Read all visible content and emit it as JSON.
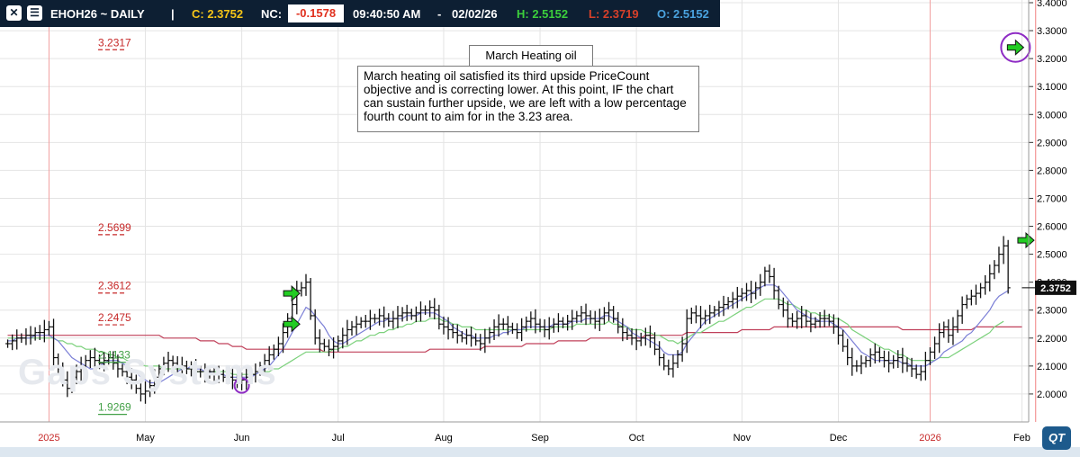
{
  "header": {
    "symbol": "EHOH26 ~ DAILY",
    "sep": "|",
    "close": "C: 2.3752",
    "nc_label": "NC:",
    "nc_value": "-0.1578",
    "time": "09:40:50 AM",
    "dash": "-",
    "date": "02/02/26",
    "high": "H: 2.5152",
    "low": "L: 2.3719",
    "open": "O: 2.5152",
    "close_icon": "close-icon",
    "menu_icon": "menu-icon"
  },
  "annotation": {
    "title": "March Heating oil",
    "text": "March heating oil satisfied its third upside PriceCount objective and is correcting lower.  At this point, IF the chart can sustain further upside, we are left with a low percentage fourth count to aim for in the 3.23 area."
  },
  "watermark": "Gaps Systems",
  "logo": "QT",
  "colors": {
    "background": "#ffffff",
    "header_bg": "#0d1f33",
    "close_yellow": "#f5c518",
    "nc_red": "#e0301e",
    "high_green": "#3ccf3c",
    "low_red": "#d6402a",
    "open_blue": "#4aa3df",
    "bar": "#111111",
    "target_red": "#c62828",
    "target_green": "#43a047",
    "ma_red": "#c0405a",
    "ma_green": "#7cd17c",
    "ma_blue": "#7b7fd6",
    "ma_cyan": "#9fd9e6",
    "arrow_green": "#22cc22",
    "circle_purple": "#8e2cc4"
  },
  "chart_data": {
    "type": "ohlc",
    "ylim": [
      1.9,
      3.4
    ],
    "y_ticks": [
      2.0,
      2.1,
      2.2,
      2.3,
      2.4,
      2.5,
      2.6,
      2.7,
      2.8,
      2.9,
      3.0,
      3.1,
      3.2,
      3.3,
      3.4
    ],
    "y_tick_labels": [
      "2.0000",
      "2.1000",
      "2.2000",
      "2.3000",
      "2.4000",
      "2.5000",
      "2.6000",
      "2.7000",
      "2.8000",
      "2.9000",
      "3.0000",
      "3.1000",
      "3.2000",
      "3.3000",
      "3.4000"
    ],
    "x_labels": [
      {
        "label": "2025",
        "i": 9,
        "year": true
      },
      {
        "label": "May",
        "i": 30
      },
      {
        "label": "Jun",
        "i": 51
      },
      {
        "label": "Jul",
        "i": 72
      },
      {
        "label": "Aug",
        "i": 95
      },
      {
        "label": "Sep",
        "i": 116
      },
      {
        "label": "Oct",
        "i": 137
      },
      {
        "label": "Nov",
        "i": 160
      },
      {
        "label": "Dec",
        "i": 181
      },
      {
        "label": "2026",
        "i": 201,
        "year": true
      },
      {
        "label": "Feb",
        "i": 221
      }
    ],
    "n_bars": 222,
    "last_price": "2.3752",
    "closes": [
      2.18,
      2.19,
      2.2,
      2.2,
      2.21,
      2.21,
      2.22,
      2.22,
      2.23,
      2.24,
      2.13,
      2.09,
      2.05,
      2.02,
      2.06,
      2.08,
      2.1,
      2.12,
      2.13,
      2.12,
      2.11,
      2.12,
      2.13,
      2.11,
      2.09,
      2.08,
      2.06,
      2.05,
      2.02,
      2.0,
      2.01,
      2.03,
      2.06,
      2.09,
      2.11,
      2.12,
      2.11,
      2.1,
      2.1,
      2.09,
      2.09,
      2.08,
      2.08,
      2.07,
      2.08,
      2.07,
      2.07,
      2.06,
      2.06,
      2.05,
      2.04,
      2.05,
      2.06,
      2.07,
      2.08,
      2.1,
      2.12,
      2.14,
      2.16,
      2.18,
      2.22,
      2.27,
      2.32,
      2.37,
      2.38,
      2.4,
      2.28,
      2.2,
      2.18,
      2.17,
      2.16,
      2.17,
      2.19,
      2.21,
      2.23,
      2.24,
      2.25,
      2.26,
      2.26,
      2.27,
      2.27,
      2.28,
      2.27,
      2.26,
      2.27,
      2.28,
      2.29,
      2.29,
      2.28,
      2.29,
      2.3,
      2.3,
      2.31,
      2.3,
      2.25,
      2.24,
      2.23,
      2.22,
      2.21,
      2.2,
      2.21,
      2.2,
      2.19,
      2.18,
      2.2,
      2.22,
      2.24,
      2.25,
      2.25,
      2.24,
      2.23,
      2.22,
      2.24,
      2.26,
      2.27,
      2.25,
      2.24,
      2.23,
      2.24,
      2.25,
      2.26,
      2.25,
      2.26,
      2.27,
      2.28,
      2.29,
      2.28,
      2.27,
      2.26,
      2.27,
      2.29,
      2.3,
      2.27,
      2.24,
      2.22,
      2.21,
      2.2,
      2.19,
      2.2,
      2.21,
      2.2,
      2.16,
      2.13,
      2.1,
      2.09,
      2.11,
      2.14,
      2.18,
      2.27,
      2.29,
      2.28,
      2.27,
      2.28,
      2.29,
      2.3,
      2.31,
      2.32,
      2.33,
      2.34,
      2.35,
      2.36,
      2.37,
      2.36,
      2.38,
      2.4,
      2.44,
      2.42,
      2.37,
      2.32,
      2.3,
      2.27,
      2.26,
      2.27,
      2.28,
      2.26,
      2.25,
      2.26,
      2.27,
      2.27,
      2.26,
      2.24,
      2.21,
      2.17,
      2.13,
      2.1,
      2.1,
      2.11,
      2.12,
      2.14,
      2.15,
      2.13,
      2.12,
      2.11,
      2.12,
      2.13,
      2.11,
      2.1,
      2.09,
      2.07,
      2.08,
      2.12,
      2.15,
      2.18,
      2.22,
      2.24,
      2.21,
      2.24,
      2.28,
      2.32,
      2.34,
      2.35,
      2.36,
      2.38,
      2.4,
      2.43,
      2.46,
      2.5,
      2.53,
      2.38
    ],
    "moving_averages": [
      {
        "color_key": "ma_red",
        "values": [
          2.21,
          2.21,
          2.21,
          2.21,
          2.21,
          2.21,
          2.21,
          2.21,
          2.21,
          2.21,
          2.21,
          2.21,
          2.21,
          2.21,
          2.21,
          2.21,
          2.21,
          2.21,
          2.21,
          2.21,
          2.21,
          2.21,
          2.21,
          2.21,
          2.21,
          2.21,
          2.21,
          2.21,
          2.21,
          2.21,
          2.21,
          2.21,
          2.21,
          2.21,
          2.2,
          2.2,
          2.2,
          2.2,
          2.2,
          2.2,
          2.2,
          2.2,
          2.19,
          2.19,
          2.19,
          2.19,
          2.18,
          2.18,
          2.18,
          2.17,
          2.17,
          2.17,
          2.16,
          2.16,
          2.16,
          2.16,
          2.16,
          2.16,
          2.16,
          2.16,
          2.16,
          2.16,
          2.16,
          2.16,
          2.16,
          2.16,
          2.16,
          2.16,
          2.16,
          2.15,
          2.15,
          2.15,
          2.15,
          2.15,
          2.15,
          2.15,
          2.15,
          2.15,
          2.15,
          2.15,
          2.15,
          2.15,
          2.15,
          2.15,
          2.15,
          2.15,
          2.15,
          2.15,
          2.15,
          2.15,
          2.15,
          2.15,
          2.16,
          2.16,
          2.16,
          2.16,
          2.16,
          2.16,
          2.16,
          2.16,
          2.16,
          2.16,
          2.16,
          2.16,
          2.17,
          2.17,
          2.17,
          2.17,
          2.17,
          2.17,
          2.17,
          2.17,
          2.17,
          2.18,
          2.18,
          2.18,
          2.18,
          2.18,
          2.18,
          2.18,
          2.19,
          2.19,
          2.19,
          2.19,
          2.19,
          2.19,
          2.19,
          2.2,
          2.2,
          2.2,
          2.2,
          2.2,
          2.2,
          2.2,
          2.2,
          2.2,
          2.2,
          2.2,
          2.2,
          2.21,
          2.21,
          2.21,
          2.21,
          2.21,
          2.21,
          2.21,
          2.21,
          2.21,
          2.22,
          2.22,
          2.22,
          2.22,
          2.22,
          2.22,
          2.22,
          2.22,
          2.22,
          2.22,
          2.22,
          2.22,
          2.23,
          2.23,
          2.23,
          2.23,
          2.23,
          2.23,
          2.23,
          2.24,
          2.24,
          2.24,
          2.24,
          2.24,
          2.24,
          2.24,
          2.24,
          2.24,
          2.24,
          2.24,
          2.24,
          2.24,
          2.24,
          2.24,
          2.24,
          2.24,
          2.24,
          2.24,
          2.24,
          2.24,
          2.24,
          2.24,
          2.24,
          2.24,
          2.24,
          2.24,
          2.24,
          2.23,
          2.23,
          2.23,
          2.23,
          2.23,
          2.23,
          2.23,
          2.23,
          2.23,
          2.23,
          2.23,
          2.23,
          2.23,
          2.23,
          2.23,
          2.23,
          2.24,
          2.24,
          2.24,
          2.24,
          2.24,
          2.24,
          2.24,
          2.24,
          2.24,
          2.24,
          2.24
        ]
      },
      {
        "color_key": "ma_green",
        "values": [
          2.2,
          2.2,
          2.2,
          2.2,
          2.2,
          2.2,
          2.2,
          2.2,
          2.2,
          2.2,
          2.2,
          2.19,
          2.19,
          2.18,
          2.18,
          2.17,
          2.17,
          2.16,
          2.16,
          2.16,
          2.15,
          2.15,
          2.14,
          2.14,
          2.13,
          2.13,
          2.12,
          2.12,
          2.12,
          2.11,
          2.1,
          2.1,
          2.1,
          2.1,
          2.09,
          2.09,
          2.09,
          2.09,
          2.09,
          2.09,
          2.09,
          2.08,
          2.08,
          2.08,
          2.08,
          2.08,
          2.08,
          2.08,
          2.08,
          2.07,
          2.07,
          2.07,
          2.07,
          2.07,
          2.07,
          2.08,
          2.08,
          2.08,
          2.09,
          2.09,
          2.1,
          2.11,
          2.12,
          2.13,
          2.14,
          2.15,
          2.15,
          2.15,
          2.15,
          2.15,
          2.15,
          2.16,
          2.16,
          2.17,
          2.17,
          2.18,
          2.19,
          2.19,
          2.2,
          2.21,
          2.21,
          2.22,
          2.22,
          2.23,
          2.23,
          2.24,
          2.24,
          2.25,
          2.25,
          2.26,
          2.26,
          2.26,
          2.27,
          2.27,
          2.27,
          2.26,
          2.26,
          2.25,
          2.25,
          2.24,
          2.24,
          2.24,
          2.23,
          2.23,
          2.23,
          2.23,
          2.23,
          2.23,
          2.23,
          2.23,
          2.23,
          2.23,
          2.23,
          2.23,
          2.23,
          2.23,
          2.23,
          2.23,
          2.23,
          2.24,
          2.24,
          2.24,
          2.24,
          2.24,
          2.25,
          2.25,
          2.25,
          2.25,
          2.25,
          2.25,
          2.25,
          2.26,
          2.25,
          2.25,
          2.24,
          2.24,
          2.23,
          2.23,
          2.23,
          2.22,
          2.22,
          2.21,
          2.21,
          2.2,
          2.19,
          2.19,
          2.18,
          2.19,
          2.2,
          2.21,
          2.22,
          2.22,
          2.23,
          2.24,
          2.25,
          2.26,
          2.26,
          2.27,
          2.28,
          2.29,
          2.3,
          2.31,
          2.31,
          2.32,
          2.33,
          2.34,
          2.34,
          2.34,
          2.34,
          2.33,
          2.32,
          2.32,
          2.31,
          2.3,
          2.3,
          2.29,
          2.29,
          2.28,
          2.28,
          2.28,
          2.27,
          2.27,
          2.26,
          2.25,
          2.23,
          2.22,
          2.21,
          2.2,
          2.19,
          2.18,
          2.17,
          2.16,
          2.16,
          2.15,
          2.14,
          2.14,
          2.13,
          2.12,
          2.12,
          2.12,
          2.12,
          2.12,
          2.12,
          2.13,
          2.13,
          2.13,
          2.14,
          2.15,
          2.16,
          2.17,
          2.18,
          2.19,
          2.2,
          2.21,
          2.22,
          2.24,
          2.25,
          2.26
        ]
      },
      {
        "color_key": "ma_blue",
        "values": [
          2.19,
          2.19,
          2.2,
          2.2,
          2.2,
          2.2,
          2.21,
          2.21,
          2.21,
          2.21,
          2.2,
          2.19,
          2.17,
          2.15,
          2.13,
          2.12,
          2.11,
          2.1,
          2.09,
          2.09,
          2.1,
          2.11,
          2.12,
          2.12,
          2.12,
          2.11,
          2.1,
          2.09,
          2.08,
          2.06,
          2.05,
          2.04,
          2.04,
          2.04,
          2.05,
          2.06,
          2.07,
          2.08,
          2.09,
          2.09,
          2.1,
          2.09,
          2.09,
          2.08,
          2.08,
          2.07,
          2.07,
          2.07,
          2.06,
          2.06,
          2.06,
          2.06,
          2.06,
          2.06,
          2.07,
          2.08,
          2.09,
          2.1,
          2.12,
          2.14,
          2.16,
          2.19,
          2.22,
          2.25,
          2.28,
          2.31,
          2.3,
          2.28,
          2.26,
          2.24,
          2.21,
          2.19,
          2.18,
          2.18,
          2.19,
          2.2,
          2.21,
          2.22,
          2.23,
          2.24,
          2.25,
          2.26,
          2.26,
          2.27,
          2.27,
          2.27,
          2.27,
          2.28,
          2.28,
          2.28,
          2.29,
          2.29,
          2.29,
          2.29,
          2.28,
          2.27,
          2.26,
          2.24,
          2.23,
          2.22,
          2.21,
          2.21,
          2.2,
          2.2,
          2.2,
          2.2,
          2.21,
          2.21,
          2.22,
          2.22,
          2.23,
          2.23,
          2.23,
          2.24,
          2.24,
          2.24,
          2.24,
          2.24,
          2.24,
          2.25,
          2.25,
          2.25,
          2.25,
          2.26,
          2.26,
          2.26,
          2.27,
          2.27,
          2.27,
          2.27,
          2.28,
          2.28,
          2.27,
          2.26,
          2.25,
          2.24,
          2.22,
          2.21,
          2.2,
          2.2,
          2.19,
          2.18,
          2.17,
          2.15,
          2.14,
          2.14,
          2.14,
          2.15,
          2.18,
          2.2,
          2.22,
          2.24,
          2.26,
          2.27,
          2.28,
          2.29,
          2.3,
          2.31,
          2.32,
          2.33,
          2.34,
          2.35,
          2.36,
          2.37,
          2.38,
          2.39,
          2.39,
          2.39,
          2.38,
          2.36,
          2.34,
          2.32,
          2.3,
          2.29,
          2.28,
          2.27,
          2.27,
          2.26,
          2.26,
          2.26,
          2.25,
          2.24,
          2.23,
          2.21,
          2.19,
          2.17,
          2.15,
          2.14,
          2.13,
          2.12,
          2.12,
          2.12,
          2.12,
          2.12,
          2.12,
          2.11,
          2.11,
          2.1,
          2.1,
          2.1,
          2.1,
          2.11,
          2.12,
          2.13,
          2.15,
          2.16,
          2.17,
          2.18,
          2.19,
          2.21,
          2.22,
          2.24,
          2.26,
          2.28,
          2.3,
          2.33,
          2.35,
          2.36,
          2.37
        ]
      }
    ],
    "targets": [
      {
        "label": "3.2317",
        "value": 3.2317,
        "i": 5,
        "color_key": "target_red"
      },
      {
        "label": "2.5699",
        "value": 2.5699,
        "i": 5,
        "color_key": "target_red"
      },
      {
        "label": "2.3612",
        "value": 2.3612,
        "i": 5,
        "color_key": "target_red"
      },
      {
        "label": "2.2475",
        "value": 2.2475,
        "i": 5,
        "color_key": "target_red"
      },
      {
        "label": "2.1133",
        "value": 2.1133,
        "i": 5,
        "color_key": "target_green"
      },
      {
        "label": "1.9269",
        "value": 1.9269,
        "i": 5,
        "color_key": "target_green"
      }
    ],
    "arrows": [
      {
        "i": 56,
        "value": 2.36
      },
      {
        "i": 56,
        "value": 2.25
      },
      {
        "i": 216,
        "value": 2.55
      }
    ],
    "circles": [
      {
        "i": 51,
        "value": 2.03,
        "r": 8
      },
      {
        "i": 220,
        "value": 3.24,
        "r": 16
      }
    ],
    "circle_arrow": {
      "i": 220,
      "value": 3.24
    },
    "red_vline_i": 224
  }
}
